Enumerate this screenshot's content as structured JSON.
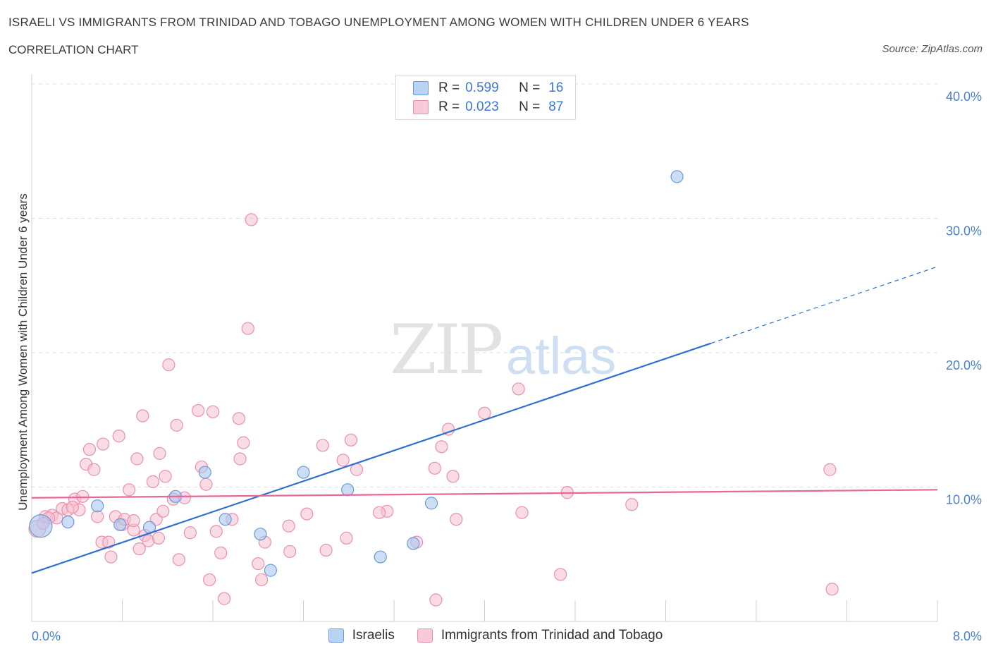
{
  "header": {
    "title": "ISRAELI VS IMMIGRANTS FROM TRINIDAD AND TOBAGO UNEMPLOYMENT AMONG WOMEN WITH CHILDREN UNDER 6 YEARS",
    "subtitle": "CORRELATION CHART",
    "source": "Source: ZipAtlas.com"
  },
  "watermark": {
    "zip": "ZIP",
    "atlas": "atlas"
  },
  "legend": {
    "series1": {
      "r_label": "R =",
      "r_value": "0.599",
      "n_label": "N =",
      "n_value": "16"
    },
    "series2": {
      "r_label": "R =",
      "r_value": "0.023",
      "n_label": "N =",
      "n_value": "87"
    }
  },
  "colors": {
    "israelis_fill": "#a8c8f0",
    "israelis_stroke": "#6a9bd8",
    "israelis_line": "#2f6fd0",
    "trinidad_fill": "#f6bfd0",
    "trinidad_stroke": "#e990ae",
    "trinidad_line": "#e8679a",
    "tick_text": "#4a7fcf"
  },
  "chart_data": {
    "type": "scatter",
    "title": "ISRAELI VS IMMIGRANTS FROM TRINIDAD AND TOBAGO UNEMPLOYMENT AMONG WOMEN WITH CHILDREN UNDER 6 YEARS",
    "ylabel": "Unemployment Among Women with Children Under 6 years",
    "xlabel": "",
    "xlim": [
      0,
      8
    ],
    "ylim": [
      0,
      40
    ],
    "x_tick_labels": [
      "0.0%",
      "8.0%"
    ],
    "y_tick_labels": [
      "10.0%",
      "20.0%",
      "30.0%",
      "40.0%"
    ],
    "y_ticks": [
      10,
      20,
      30,
      40
    ],
    "grid": true,
    "legend_position": "top-center",
    "series": [
      {
        "name": "Israelis",
        "points": [
          {
            "x": 0.08,
            "y": 7.1,
            "big": true
          },
          {
            "x": 0.32,
            "y": 7.4
          },
          {
            "x": 0.58,
            "y": 8.6
          },
          {
            "x": 0.78,
            "y": 7.2
          },
          {
            "x": 1.04,
            "y": 7.0
          },
          {
            "x": 1.27,
            "y": 9.3
          },
          {
            "x": 1.53,
            "y": 11.1
          },
          {
            "x": 1.71,
            "y": 7.6
          },
          {
            "x": 2.02,
            "y": 6.5
          },
          {
            "x": 2.11,
            "y": 3.8
          },
          {
            "x": 2.4,
            "y": 11.1
          },
          {
            "x": 2.79,
            "y": 9.8
          },
          {
            "x": 3.08,
            "y": 4.8
          },
          {
            "x": 3.37,
            "y": 5.8
          },
          {
            "x": 3.53,
            "y": 8.8
          },
          {
            "x": 5.7,
            "y": 33.1
          }
        ],
        "trend": {
          "x0": 0,
          "y0": 3.6,
          "x1": 6.0,
          "y1": 20.7,
          "dash_x1": 8.0,
          "dash_y1": 26.4
        }
      },
      {
        "name": "Immigrants from Trinidad and Tobago",
        "points": [
          {
            "x": 0.05,
            "y": 6.9,
            "big": true
          },
          {
            "x": 0.12,
            "y": 7.8
          },
          {
            "x": 0.18,
            "y": 7.9
          },
          {
            "x": 0.22,
            "y": 7.7
          },
          {
            "x": 0.27,
            "y": 8.4
          },
          {
            "x": 0.32,
            "y": 8.3
          },
          {
            "x": 0.38,
            "y": 9.1
          },
          {
            "x": 0.42,
            "y": 8.3
          },
          {
            "x": 0.45,
            "y": 9.3
          },
          {
            "x": 0.48,
            "y": 11.7
          },
          {
            "x": 0.51,
            "y": 12.8
          },
          {
            "x": 0.55,
            "y": 11.3
          },
          {
            "x": 0.58,
            "y": 7.8
          },
          {
            "x": 0.62,
            "y": 5.9
          },
          {
            "x": 0.63,
            "y": 13.2
          },
          {
            "x": 0.68,
            "y": 5.9
          },
          {
            "x": 0.7,
            "y": 4.8
          },
          {
            "x": 0.74,
            "y": 7.8
          },
          {
            "x": 0.77,
            "y": 13.8
          },
          {
            "x": 0.8,
            "y": 7.2
          },
          {
            "x": 0.82,
            "y": 7.6
          },
          {
            "x": 0.86,
            "y": 9.8
          },
          {
            "x": 0.9,
            "y": 6.8
          },
          {
            "x": 0.93,
            "y": 12.1
          },
          {
            "x": 0.95,
            "y": 5.4
          },
          {
            "x": 0.98,
            "y": 15.3
          },
          {
            "x": 1.0,
            "y": 6.4
          },
          {
            "x": 1.03,
            "y": 6.0
          },
          {
            "x": 1.07,
            "y": 10.4
          },
          {
            "x": 1.1,
            "y": 7.6
          },
          {
            "x": 1.13,
            "y": 12.5
          },
          {
            "x": 1.16,
            "y": 8.2
          },
          {
            "x": 1.18,
            "y": 10.8
          },
          {
            "x": 1.21,
            "y": 19.1
          },
          {
            "x": 1.25,
            "y": 9.1
          },
          {
            "x": 1.28,
            "y": 14.6
          },
          {
            "x": 1.3,
            "y": 4.6
          },
          {
            "x": 1.35,
            "y": 9.2
          },
          {
            "x": 1.4,
            "y": 6.6
          },
          {
            "x": 1.47,
            "y": 15.7
          },
          {
            "x": 1.5,
            "y": 11.5
          },
          {
            "x": 1.54,
            "y": 10.2
          },
          {
            "x": 1.57,
            "y": 3.1
          },
          {
            "x": 1.6,
            "y": 15.6
          },
          {
            "x": 1.63,
            "y": 6.7
          },
          {
            "x": 1.67,
            "y": 5.1
          },
          {
            "x": 1.7,
            "y": 1.7
          },
          {
            "x": 1.77,
            "y": 7.6
          },
          {
            "x": 1.83,
            "y": 15.1
          },
          {
            "x": 1.84,
            "y": 12.1
          },
          {
            "x": 1.87,
            "y": 13.3
          },
          {
            "x": 1.91,
            "y": 21.8
          },
          {
            "x": 1.94,
            "y": 29.9
          },
          {
            "x": 2.0,
            "y": 4.3
          },
          {
            "x": 2.03,
            "y": 3.1
          },
          {
            "x": 2.06,
            "y": 5.9
          },
          {
            "x": 2.27,
            "y": 7.1
          },
          {
            "x": 2.28,
            "y": 5.2
          },
          {
            "x": 2.43,
            "y": 8.0
          },
          {
            "x": 2.57,
            "y": 13.1
          },
          {
            "x": 2.6,
            "y": 5.3
          },
          {
            "x": 2.75,
            "y": 12.0
          },
          {
            "x": 2.78,
            "y": 6.2
          },
          {
            "x": 2.82,
            "y": 13.5
          },
          {
            "x": 2.87,
            "y": 11.3
          },
          {
            "x": 3.14,
            "y": 8.2
          },
          {
            "x": 3.4,
            "y": 5.9
          },
          {
            "x": 3.56,
            "y": 11.4
          },
          {
            "x": 3.57,
            "y": 1.6
          },
          {
            "x": 3.62,
            "y": 13.0
          },
          {
            "x": 3.68,
            "y": 14.3
          },
          {
            "x": 3.72,
            "y": 10.8
          },
          {
            "x": 3.75,
            "y": 7.6
          },
          {
            "x": 3.07,
            "y": 8.1
          },
          {
            "x": 4.0,
            "y": 15.5
          },
          {
            "x": 4.3,
            "y": 17.3
          },
          {
            "x": 4.33,
            "y": 8.1
          },
          {
            "x": 4.67,
            "y": 3.5
          },
          {
            "x": 4.73,
            "y": 9.6
          },
          {
            "x": 5.3,
            "y": 8.7
          },
          {
            "x": 7.05,
            "y": 11.3
          },
          {
            "x": 7.07,
            "y": 2.4
          },
          {
            "x": 0.15,
            "y": 7.7
          },
          {
            "x": 0.36,
            "y": 8.5
          },
          {
            "x": 0.9,
            "y": 7.5
          },
          {
            "x": 1.12,
            "y": 6.2
          },
          {
            "x": 0.1,
            "y": 7.3
          }
        ],
        "trend": {
          "x0": 0,
          "y0": 9.2,
          "x1": 8.0,
          "y1": 9.8
        }
      }
    ]
  },
  "bottom_legend": {
    "item1": "Israelis",
    "item2": "Immigrants from Trinidad and Tobago"
  }
}
